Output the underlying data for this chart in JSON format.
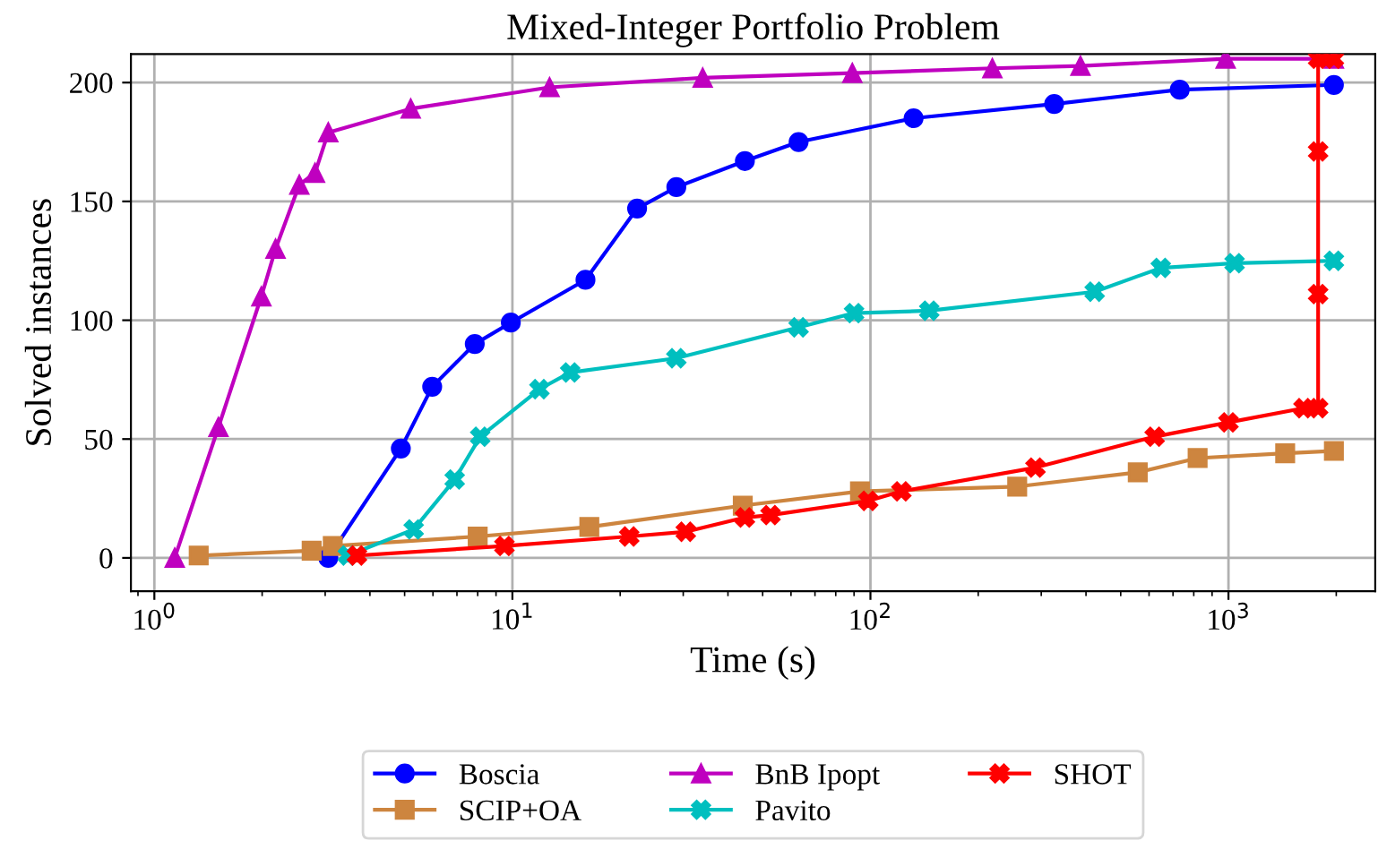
{
  "chart_data": {
    "type": "line",
    "title": "Mixed-Integer Portfolio Problem",
    "xlabel": "Time (s)",
    "ylabel": "Solved instances",
    "log": "x",
    "xlim": [
      0.86,
      2570
    ],
    "xticks": [
      {
        "value": 1,
        "label": "10$^{0}$"
      },
      {
        "value": 10,
        "label": "10$^{1}$"
      },
      {
        "value": 100,
        "label": "10$^{2}$"
      },
      {
        "value": 1000,
        "label": "10$^{3}$"
      }
    ],
    "ylim": [
      -14,
      212
    ],
    "yticks": [
      0,
      50,
      100,
      150,
      200
    ],
    "grid": true,
    "legend": "bottom",
    "line_style": "solid",
    "series": [
      {
        "name": "Boscia",
        "color": "#0000ff",
        "marker": "circle",
        "x": [
          3.06,
          4.88,
          5.97,
          7.85,
          9.9,
          16.0,
          22.3,
          28.7,
          44.6,
          63,
          132,
          326,
          731,
          1970
        ],
        "values": [
          0,
          46,
          72,
          90,
          99,
          117,
          147,
          156,
          167,
          175,
          185,
          191,
          197,
          199
        ]
      },
      {
        "name": "SCIP+OA",
        "color": "#cd853f",
        "marker": "square",
        "x": [
          1.33,
          2.75,
          3.15,
          8.0,
          16.4,
          44,
          93.5,
          257,
          558,
          820,
          1440,
          1970
        ],
        "values": [
          1,
          3,
          5,
          9,
          13,
          22,
          28,
          30,
          36,
          42,
          44,
          45
        ]
      },
      {
        "name": "BnB Ipopt",
        "color": "#bf00bf",
        "marker": "triangle",
        "x": [
          1.14,
          1.51,
          1.99,
          2.18,
          2.54,
          2.81,
          3.06,
          5.2,
          12.7,
          34,
          89,
          219,
          386,
          982,
          1970
        ],
        "values": [
          0,
          55,
          110,
          130,
          157,
          162,
          179,
          189,
          198,
          202,
          204,
          206,
          207,
          210,
          210
        ]
      },
      {
        "name": "Pavito",
        "color": "#00bfbf",
        "marker": "cross",
        "x": [
          3.47,
          5.3,
          6.9,
          8.13,
          11.9,
          14.5,
          28.7,
          63,
          90,
          146,
          423,
          647,
          1040,
          1970
        ],
        "values": [
          1,
          12,
          33,
          51,
          71,
          78,
          84,
          97,
          103,
          104,
          112,
          122,
          124,
          125
        ]
      },
      {
        "name": "SHOT",
        "color": "#ff0000",
        "marker": "cross",
        "x": [
          3.68,
          9.5,
          21.2,
          30.5,
          44.6,
          52.6,
          98.6,
          122,
          289,
          622,
          1000,
          1620,
          1780,
          1780,
          1780,
          1780,
          1970
        ],
        "values": [
          1,
          5,
          9,
          11,
          17,
          18,
          24,
          28,
          38,
          51,
          57,
          63,
          63,
          111,
          171,
          210,
          210
        ]
      }
    ]
  }
}
